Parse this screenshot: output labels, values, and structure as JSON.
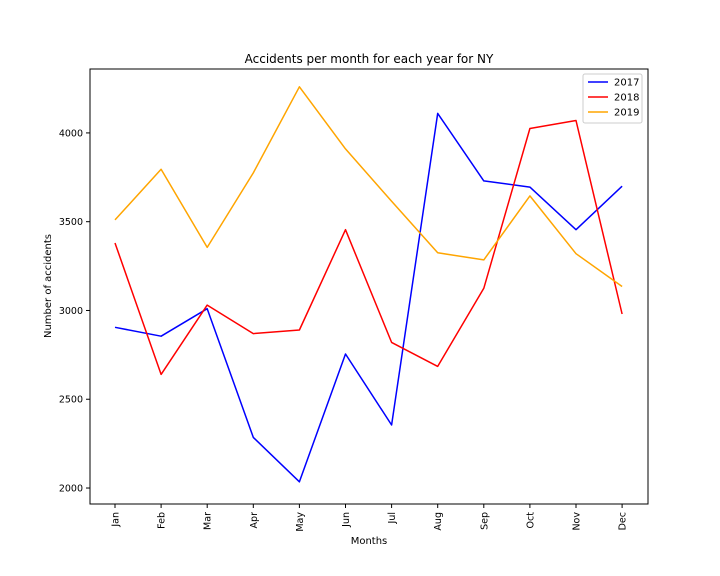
{
  "chart_data": {
    "type": "line",
    "title": "Accidents per month for each year for NY",
    "xlabel": "Months",
    "ylabel": "Number of accidents",
    "categories": [
      "Jan",
      "Feb",
      "Mar",
      "Apr",
      "May",
      "Jun",
      "Jul",
      "Aug",
      "Sep",
      "Oct",
      "Nov",
      "Dec"
    ],
    "ylim": [
      1910,
      4360
    ],
    "yticks": [
      2000,
      2500,
      3000,
      3500,
      4000
    ],
    "grid": false,
    "legend_position": "top-right",
    "series": [
      {
        "name": "2017",
        "color": "#0000ff",
        "values": [
          2905,
          2855,
          3010,
          2285,
          2035,
          2755,
          2355,
          4110,
          3730,
          3695,
          3455,
          3700
        ]
      },
      {
        "name": "2018",
        "color": "#ff0000",
        "values": [
          3380,
          2640,
          3030,
          2870,
          2890,
          3455,
          2820,
          2685,
          3125,
          4025,
          4070,
          2980
        ]
      },
      {
        "name": "2019",
        "color": "#ffa500",
        "values": [
          3510,
          3795,
          3355,
          3775,
          4260,
          3910,
          3615,
          3325,
          3285,
          3645,
          3320,
          3135
        ]
      }
    ]
  }
}
